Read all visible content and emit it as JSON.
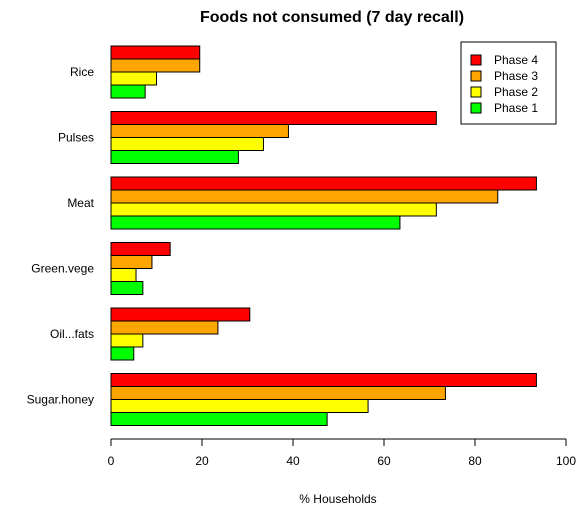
{
  "chart_data": {
    "type": "bar",
    "orientation": "horizontal",
    "title": "Foods not consumed (7 day recall)",
    "xlabel": "% Households",
    "ylabel": "",
    "xlim": [
      0,
      100
    ],
    "xticks": [
      0,
      20,
      40,
      60,
      80,
      100
    ],
    "grid": false,
    "legend_position": "top-right",
    "categories": [
      "Rice",
      "Pulses",
      "Meat",
      "Green.vege",
      "Oil...fats",
      "Sugar.honey"
    ],
    "series": [
      {
        "name": "Phase 4",
        "color": "#ff0000",
        "values": [
          19.5,
          71.5,
          93.5,
          13,
          30.5,
          93.5
        ]
      },
      {
        "name": "Phase 3",
        "color": "#ffa500",
        "values": [
          19.5,
          39,
          85,
          9,
          23.5,
          73.5
        ]
      },
      {
        "name": "Phase 2",
        "color": "#ffff00",
        "values": [
          10,
          33.5,
          71.5,
          5.5,
          7,
          56.5
        ]
      },
      {
        "name": "Phase 1",
        "color": "#00ff00",
        "values": [
          7.5,
          28,
          63.5,
          7,
          5,
          47.5
        ]
      }
    ]
  }
}
